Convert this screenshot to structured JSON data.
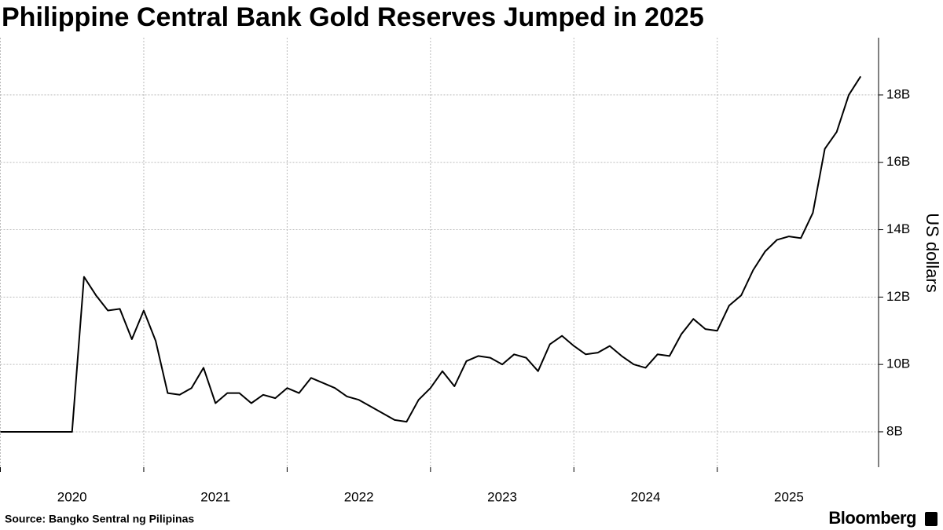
{
  "chart_data": {
    "type": "line",
    "title": "Philippine Central Bank Gold Reserves Jumped in 2025",
    "y_axis_label": "US dollars",
    "source": "Source: Bangko Sentral ng Pilipinas",
    "brand": "Bloomberg",
    "x": [
      2020.0,
      2020.083,
      2020.167,
      2020.25,
      2020.333,
      2020.417,
      2020.5,
      2020.583,
      2020.667,
      2020.75,
      2020.833,
      2020.917,
      2021.0,
      2021.083,
      2021.167,
      2021.25,
      2021.333,
      2021.417,
      2021.5,
      2021.583,
      2021.667,
      2021.75,
      2021.833,
      2021.917,
      2022.0,
      2022.083,
      2022.167,
      2022.25,
      2022.333,
      2022.417,
      2022.5,
      2022.583,
      2022.667,
      2022.75,
      2022.833,
      2022.917,
      2023.0,
      2023.083,
      2023.167,
      2023.25,
      2023.333,
      2023.417,
      2023.5,
      2023.583,
      2023.667,
      2023.75,
      2023.833,
      2023.917,
      2024.0,
      2024.083,
      2024.167,
      2024.25,
      2024.333,
      2024.417,
      2024.5,
      2024.583,
      2024.667,
      2024.75,
      2024.833,
      2024.917,
      2025.0,
      2025.083,
      2025.167,
      2025.25,
      2025.333,
      2025.417,
      2025.5,
      2025.583,
      2025.667,
      2025.75,
      2025.833,
      2025.917,
      2026.0
    ],
    "series": [
      {
        "name": "Gold reserves",
        "color": "#000000",
        "values": [
          8.0,
          8.0,
          8.0,
          8.0,
          8.0,
          8.0,
          8.0,
          12.6,
          12.05,
          11.6,
          11.65,
          10.75,
          11.6,
          10.7,
          9.15,
          9.1,
          9.3,
          9.9,
          8.85,
          9.15,
          9.15,
          8.85,
          9.1,
          9.0,
          9.3,
          9.15,
          9.6,
          9.45,
          9.3,
          9.05,
          8.95,
          8.75,
          8.55,
          8.35,
          8.3,
          8.95,
          9.3,
          9.8,
          9.35,
          10.1,
          10.25,
          10.2,
          10.0,
          10.3,
          10.2,
          9.8,
          10.6,
          10.85,
          10.55,
          10.3,
          10.35,
          10.55,
          10.25,
          10.0,
          9.9,
          10.3,
          10.25,
          10.9,
          11.35,
          11.05,
          11.0,
          11.75,
          12.05,
          12.8,
          13.35,
          13.7,
          13.8,
          13.75,
          14.5,
          16.4,
          16.9,
          18.0,
          18.55
        ]
      }
    ],
    "xlim": [
      2020,
      2026.125
    ],
    "xticks": [
      2020,
      2021,
      2022,
      2023,
      2024,
      2025
    ],
    "ylim": [
      6.95,
      19.7
    ],
    "yticks": [
      {
        "value": 8,
        "label": "8B"
      },
      {
        "value": 10,
        "label": "10B"
      },
      {
        "value": 12,
        "label": "12B"
      },
      {
        "value": 14,
        "label": "14B"
      },
      {
        "value": 16,
        "label": "16B"
      },
      {
        "value": 18,
        "label": "18B"
      }
    ],
    "grid": true
  }
}
